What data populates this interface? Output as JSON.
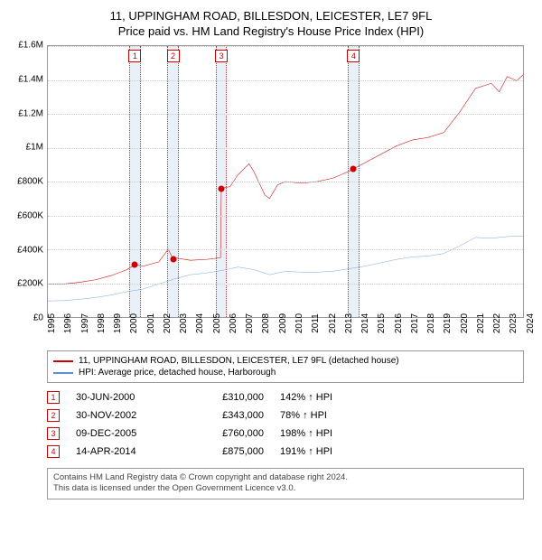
{
  "title": {
    "line1": "11, UPPINGHAM ROAD, BILLESDON, LEICESTER, LE7 9FL",
    "line2": "Price paid vs. HM Land Registry's House Price Index (HPI)"
  },
  "chart": {
    "type": "line",
    "background_color": "#ffffff",
    "grid_color": "#cccccc",
    "border_color": "#999999",
    "y_axis": {
      "min": 0,
      "max": 1600000,
      "step": 200000,
      "labels": [
        "£0",
        "£200K",
        "£400K",
        "£600K",
        "£800K",
        "£1M",
        "£1.2M",
        "£1.4M",
        "£1.6M"
      ]
    },
    "x_axis": {
      "min": 1995,
      "max": 2025,
      "labels": [
        "1995",
        "1996",
        "1997",
        "1998",
        "1999",
        "2000",
        "2001",
        "2002",
        "2003",
        "2004",
        "2005",
        "2006",
        "2007",
        "2008",
        "2009",
        "2010",
        "2011",
        "2012",
        "2013",
        "2014",
        "2015",
        "2016",
        "2017",
        "2018",
        "2019",
        "2020",
        "2021",
        "2022",
        "2023",
        "2024",
        "2025"
      ]
    },
    "bands": [
      {
        "center_year": 2000.5,
        "width_years": 0.7
      },
      {
        "center_year": 2002.9,
        "width_years": 0.7
      },
      {
        "center_year": 2005.95,
        "width_years": 0.7
      },
      {
        "center_year": 2014.3,
        "width_years": 0.7
      }
    ],
    "markers": [
      {
        "n": "1",
        "year": 2000.5
      },
      {
        "n": "2",
        "year": 2002.9
      },
      {
        "n": "3",
        "year": 2005.95
      },
      {
        "n": "4",
        "year": 2014.3
      }
    ],
    "series": [
      {
        "name": "property",
        "color": "#cc0000",
        "width": 1.6,
        "points": [
          [
            1995,
            195000
          ],
          [
            1996,
            195000
          ],
          [
            1997,
            205000
          ],
          [
            1998,
            220000
          ],
          [
            1999,
            245000
          ],
          [
            2000,
            280000
          ],
          [
            2000.5,
            310000
          ],
          [
            2001,
            300000
          ],
          [
            2002,
            325000
          ],
          [
            2002.6,
            400000
          ],
          [
            2002.9,
            343000
          ],
          [
            2003,
            350000
          ],
          [
            2004,
            335000
          ],
          [
            2005,
            340000
          ],
          [
            2005.9,
            350000
          ],
          [
            2005.95,
            760000
          ],
          [
            2006.5,
            770000
          ],
          [
            2007,
            840000
          ],
          [
            2007.7,
            905000
          ],
          [
            2008,
            860000
          ],
          [
            2008.7,
            720000
          ],
          [
            2009,
            700000
          ],
          [
            2009.5,
            780000
          ],
          [
            2010,
            800000
          ],
          [
            2011,
            790000
          ],
          [
            2012,
            800000
          ],
          [
            2013,
            820000
          ],
          [
            2014,
            860000
          ],
          [
            2014.3,
            875000
          ],
          [
            2015,
            910000
          ],
          [
            2016,
            960000
          ],
          [
            2017,
            1010000
          ],
          [
            2018,
            1045000
          ],
          [
            2019,
            1060000
          ],
          [
            2020,
            1090000
          ],
          [
            2021,
            1210000
          ],
          [
            2022,
            1350000
          ],
          [
            2023,
            1380000
          ],
          [
            2023.5,
            1330000
          ],
          [
            2024,
            1420000
          ],
          [
            2024.6,
            1395000
          ],
          [
            2025,
            1430000
          ]
        ]
      },
      {
        "name": "hpi",
        "color": "#5b8fd6",
        "width": 1.2,
        "points": [
          [
            1995,
            95000
          ],
          [
            1996,
            97000
          ],
          [
            1997,
            105000
          ],
          [
            1998,
            115000
          ],
          [
            1999,
            130000
          ],
          [
            2000,
            150000
          ],
          [
            2001,
            165000
          ],
          [
            2002,
            195000
          ],
          [
            2003,
            225000
          ],
          [
            2004,
            250000
          ],
          [
            2005,
            260000
          ],
          [
            2006,
            275000
          ],
          [
            2007,
            295000
          ],
          [
            2008,
            280000
          ],
          [
            2009,
            250000
          ],
          [
            2010,
            270000
          ],
          [
            2011,
            265000
          ],
          [
            2012,
            265000
          ],
          [
            2013,
            270000
          ],
          [
            2014,
            285000
          ],
          [
            2015,
            300000
          ],
          [
            2016,
            320000
          ],
          [
            2017,
            340000
          ],
          [
            2018,
            355000
          ],
          [
            2019,
            360000
          ],
          [
            2020,
            375000
          ],
          [
            2021,
            420000
          ],
          [
            2022,
            470000
          ],
          [
            2023,
            465000
          ],
          [
            2024,
            475000
          ],
          [
            2025,
            478000
          ]
        ]
      }
    ],
    "sale_points": [
      {
        "year": 2000.5,
        "value": 310000,
        "color": "#cc0000"
      },
      {
        "year": 2002.9,
        "value": 343000,
        "color": "#cc0000"
      },
      {
        "year": 2005.95,
        "value": 760000,
        "color": "#cc0000"
      },
      {
        "year": 2014.3,
        "value": 875000,
        "color": "#cc0000"
      }
    ]
  },
  "legend": [
    {
      "color": "#cc0000",
      "label": "11, UPPINGHAM ROAD, BILLESDON, LEICESTER, LE7 9FL (detached house)"
    },
    {
      "color": "#5b8fd6",
      "label": "HPI: Average price, detached house, Harborough"
    }
  ],
  "sales": [
    {
      "n": "1",
      "date": "30-JUN-2000",
      "price": "£310,000",
      "pct": "142% ↑ HPI"
    },
    {
      "n": "2",
      "date": "30-NOV-2002",
      "price": "£343,000",
      "pct": "78% ↑ HPI"
    },
    {
      "n": "3",
      "date": "09-DEC-2005",
      "price": "£760,000",
      "pct": "198% ↑ HPI"
    },
    {
      "n": "4",
      "date": "14-APR-2014",
      "price": "£875,000",
      "pct": "191% ↑ HPI"
    }
  ],
  "footer": {
    "line1": "Contains HM Land Registry data © Crown copyright and database right 2024.",
    "line2": "This data is licensed under the Open Government Licence v3.0."
  }
}
